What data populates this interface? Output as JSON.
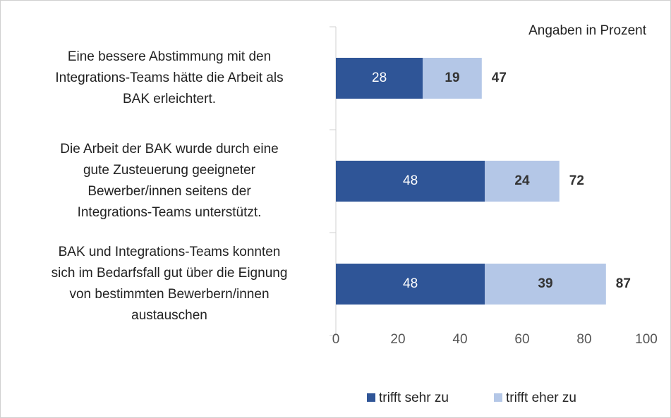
{
  "chart_data": {
    "type": "stacked-barh",
    "annotation": "Angaben in Prozent",
    "categories": [
      [
        "Eine bessere Abstimmung mit den",
        "Integrations-Teams hätte die Arbeit als",
        "BAK erleichtert."
      ],
      [
        "Die Arbeit der BAK wurde durch eine",
        "gute Zusteuerung geeigneter",
        "Bewerber/innen seitens der",
        "Integrations-Teams unterstützt."
      ],
      [
        "BAK und Integrations-Teams konnten",
        "sich im Bedarfsfall gut über die Eignung",
        "von bestimmten Bewerbern/innen",
        "austauschen"
      ]
    ],
    "series": [
      {
        "name": "trifft sehr zu",
        "color": "#2f5597",
        "values": [
          28,
          48,
          48
        ]
      },
      {
        "name": "trifft eher zu",
        "color": "#b4c7e7",
        "values": [
          19,
          24,
          39
        ]
      }
    ],
    "totals": [
      47,
      72,
      87
    ],
    "xlim": [
      0,
      100
    ],
    "xticks": [
      0,
      20,
      40,
      60,
      80,
      100
    ],
    "grid": false,
    "legend": "bottom"
  }
}
